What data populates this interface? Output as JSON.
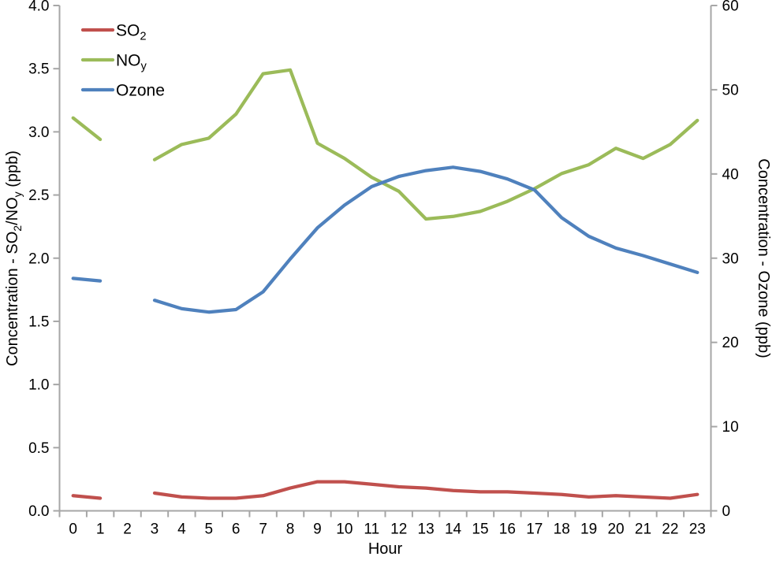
{
  "chart_data": {
    "type": "line",
    "xlabel": "Hour",
    "x_tick_labels": [
      "0",
      "1",
      "2",
      "3",
      "4",
      "5",
      "6",
      "7",
      "8",
      "9",
      "10",
      "11",
      "12",
      "13",
      "14",
      "15",
      "16",
      "17",
      "18",
      "19",
      "20",
      "21",
      "22",
      "23"
    ],
    "axes": {
      "left": {
        "title": "Concentration - SO2/NOy (ppb)",
        "title_runs": [
          {
            "t": "Concentration - SO"
          },
          {
            "t": "2",
            "sub": true
          },
          {
            "t": "/NO"
          },
          {
            "t": "y",
            "sub": true
          },
          {
            "t": " (ppb)"
          }
        ],
        "min": 0.0,
        "max": 4.0,
        "step": 0.5,
        "tick_labels": [
          "0.0",
          "0.5",
          "1.0",
          "1.5",
          "2.0",
          "2.5",
          "3.0",
          "3.5",
          "4.0"
        ]
      },
      "right": {
        "title": "Concentration - Ozone (ppb)",
        "title_runs": [
          {
            "t": "Concentration - Ozone (ppb)"
          }
        ],
        "min": 0,
        "max": 60,
        "step": 10,
        "tick_labels": [
          "0",
          "10",
          "20",
          "30",
          "40",
          "50",
          "60"
        ]
      }
    },
    "grid": false,
    "legend_position": "top-left-inside",
    "series": [
      {
        "name": "SO2",
        "label_runs": [
          {
            "t": "SO"
          },
          {
            "t": "2",
            "sub": true
          }
        ],
        "axis": "left",
        "color": "#C0504D",
        "values": [
          0.12,
          0.1,
          null,
          0.14,
          0.11,
          0.1,
          0.1,
          0.12,
          0.18,
          0.23,
          0.23,
          0.21,
          0.19,
          0.18,
          0.16,
          0.15,
          0.15,
          0.14,
          0.13,
          0.11,
          0.12,
          0.11,
          0.1,
          0.13
        ]
      },
      {
        "name": "NOy",
        "label_runs": [
          {
            "t": "NO"
          },
          {
            "t": "y",
            "sub": true
          }
        ],
        "axis": "left",
        "color": "#9BBB59",
        "values": [
          3.11,
          2.94,
          null,
          2.78,
          2.9,
          2.95,
          3.14,
          3.46,
          3.49,
          2.91,
          2.79,
          2.64,
          2.53,
          2.31,
          2.33,
          2.37,
          2.45,
          2.55,
          2.67,
          2.74,
          2.87,
          2.79,
          2.9,
          3.09
        ]
      },
      {
        "name": "Ozone",
        "label_runs": [
          {
            "t": "Ozone"
          }
        ],
        "axis": "right",
        "color": "#4F81BD",
        "values": [
          27.6,
          27.3,
          null,
          25.0,
          24.0,
          23.6,
          23.9,
          26.0,
          29.9,
          33.6,
          36.3,
          38.5,
          39.7,
          40.4,
          40.8,
          40.3,
          39.4,
          38.1,
          34.8,
          32.6,
          31.2,
          30.3,
          29.3,
          28.3
        ]
      }
    ],
    "colors": {
      "axis_line": "#A6A6A6",
      "text": "#000000",
      "background": "#FFFFFF"
    }
  }
}
